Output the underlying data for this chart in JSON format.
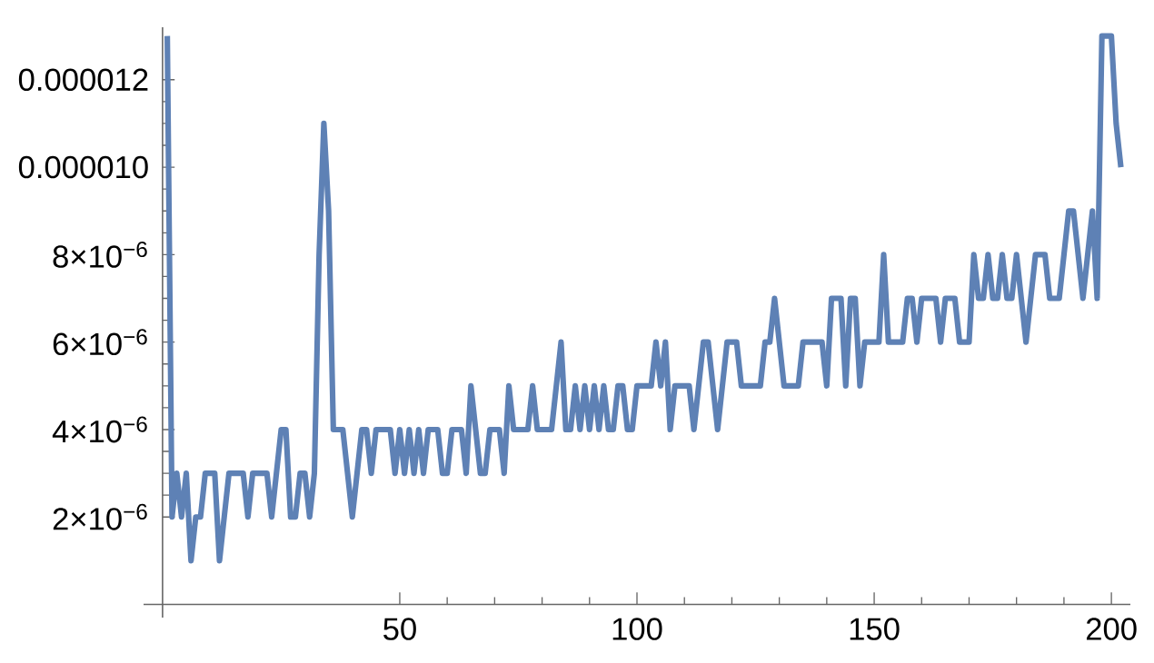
{
  "chart_data": {
    "type": "line",
    "x": [
      1,
      2,
      3,
      4,
      5,
      6,
      7,
      8,
      9,
      10,
      11,
      12,
      13,
      14,
      15,
      16,
      17,
      18,
      19,
      20,
      21,
      22,
      23,
      24,
      25,
      26,
      27,
      28,
      29,
      30,
      31,
      32,
      33,
      34,
      35,
      36,
      37,
      38,
      39,
      40,
      41,
      42,
      43,
      44,
      45,
      46,
      47,
      48,
      49,
      50,
      51,
      52,
      53,
      54,
      55,
      56,
      57,
      58,
      59,
      60,
      61,
      62,
      63,
      64,
      65,
      66,
      67,
      68,
      69,
      70,
      71,
      72,
      73,
      74,
      75,
      76,
      77,
      78,
      79,
      80,
      81,
      82,
      83,
      84,
      85,
      86,
      87,
      88,
      89,
      90,
      91,
      92,
      93,
      94,
      95,
      96,
      97,
      98,
      99,
      100,
      101,
      102,
      103,
      104,
      105,
      106,
      107,
      108,
      109,
      110,
      111,
      112,
      113,
      114,
      115,
      116,
      117,
      118,
      119,
      120,
      121,
      122,
      123,
      124,
      125,
      126,
      127,
      128,
      129,
      130,
      131,
      132,
      133,
      134,
      135,
      136,
      137,
      138,
      139,
      140,
      141,
      142,
      143,
      144,
      145,
      146,
      147,
      148,
      149,
      150,
      151,
      152,
      153,
      154,
      155,
      156,
      157,
      158,
      159,
      160,
      161,
      162,
      163,
      164,
      165,
      166,
      167,
      168,
      169,
      170,
      171,
      172,
      173,
      174,
      175,
      176,
      177,
      178,
      179,
      180,
      181,
      182,
      183,
      184,
      185,
      186,
      187,
      188,
      189,
      190,
      191,
      192,
      193,
      194,
      195,
      196,
      197,
      198,
      199,
      200,
      201,
      202
    ],
    "series": [
      {
        "color": "#5e81b5",
        "values": [
          1.3e-05,
          2e-06,
          3e-06,
          2e-06,
          3e-06,
          1e-06,
          2e-06,
          2e-06,
          3e-06,
          3e-06,
          3e-06,
          1e-06,
          2e-06,
          3e-06,
          3e-06,
          3e-06,
          3e-06,
          2e-06,
          3e-06,
          3e-06,
          3e-06,
          3e-06,
          2e-06,
          3e-06,
          4e-06,
          4e-06,
          2e-06,
          2e-06,
          3e-06,
          3e-06,
          2e-06,
          3e-06,
          8e-06,
          1.1e-05,
          9e-06,
          4e-06,
          4e-06,
          4e-06,
          3e-06,
          2e-06,
          3e-06,
          4e-06,
          4e-06,
          3e-06,
          4e-06,
          4e-06,
          4e-06,
          4e-06,
          3e-06,
          4e-06,
          3e-06,
          4e-06,
          3e-06,
          4e-06,
          3e-06,
          4e-06,
          4e-06,
          4e-06,
          3e-06,
          3e-06,
          4e-06,
          4e-06,
          4e-06,
          3e-06,
          5e-06,
          4e-06,
          3e-06,
          3e-06,
          4e-06,
          4e-06,
          4e-06,
          3e-06,
          5e-06,
          4e-06,
          4e-06,
          4e-06,
          4e-06,
          5e-06,
          4e-06,
          4e-06,
          4e-06,
          4e-06,
          5e-06,
          6e-06,
          4e-06,
          4e-06,
          5e-06,
          4e-06,
          5e-06,
          4e-06,
          5e-06,
          4e-06,
          5e-06,
          4e-06,
          4e-06,
          5e-06,
          5e-06,
          4e-06,
          4e-06,
          5e-06,
          5e-06,
          5e-06,
          5e-06,
          6e-06,
          5e-06,
          6e-06,
          4e-06,
          5e-06,
          5e-06,
          5e-06,
          5e-06,
          4e-06,
          5e-06,
          6e-06,
          6e-06,
          5e-06,
          4e-06,
          5e-06,
          6e-06,
          6e-06,
          6e-06,
          5e-06,
          5e-06,
          5e-06,
          5e-06,
          5e-06,
          6e-06,
          6e-06,
          7e-06,
          6e-06,
          5e-06,
          5e-06,
          5e-06,
          5e-06,
          6e-06,
          6e-06,
          6e-06,
          6e-06,
          6e-06,
          5e-06,
          7e-06,
          7e-06,
          7e-06,
          5e-06,
          7e-06,
          7e-06,
          5e-06,
          6e-06,
          6e-06,
          6e-06,
          6e-06,
          8e-06,
          6e-06,
          6e-06,
          6e-06,
          6e-06,
          7e-06,
          7e-06,
          6e-06,
          7e-06,
          7e-06,
          7e-06,
          7e-06,
          6e-06,
          7e-06,
          7e-06,
          7e-06,
          6e-06,
          6e-06,
          6e-06,
          8e-06,
          7e-06,
          7e-06,
          8e-06,
          7e-06,
          7e-06,
          8e-06,
          7e-06,
          7e-06,
          8e-06,
          7e-06,
          6e-06,
          7e-06,
          8e-06,
          8e-06,
          8e-06,
          7e-06,
          7e-06,
          7e-06,
          8e-06,
          9e-06,
          9e-06,
          8e-06,
          7e-06,
          8e-06,
          9e-06,
          7e-06,
          1.3e-05,
          1.3e-05,
          1.3e-05,
          1.1e-05,
          1e-05
        ]
      }
    ],
    "xlim": [
      -4,
      204
    ],
    "ylim": [
      -3e-07,
      1.32e-05
    ],
    "xticks": [
      50,
      100,
      150,
      200
    ],
    "yticks": [
      {
        "value": 2e-06,
        "label": "2×10$^{−6}$"
      },
      {
        "value": 4e-06,
        "label": "4×10$^{−6}$"
      },
      {
        "value": 6e-06,
        "label": "6×10$^{−6}$"
      },
      {
        "value": 8e-06,
        "label": "8×10$^{−6}$"
      },
      {
        "value": 1e-05,
        "label": "0.000010"
      },
      {
        "value": 1.2e-05,
        "label": "0.000012"
      }
    ],
    "marker": "none",
    "line_style": "solid"
  }
}
